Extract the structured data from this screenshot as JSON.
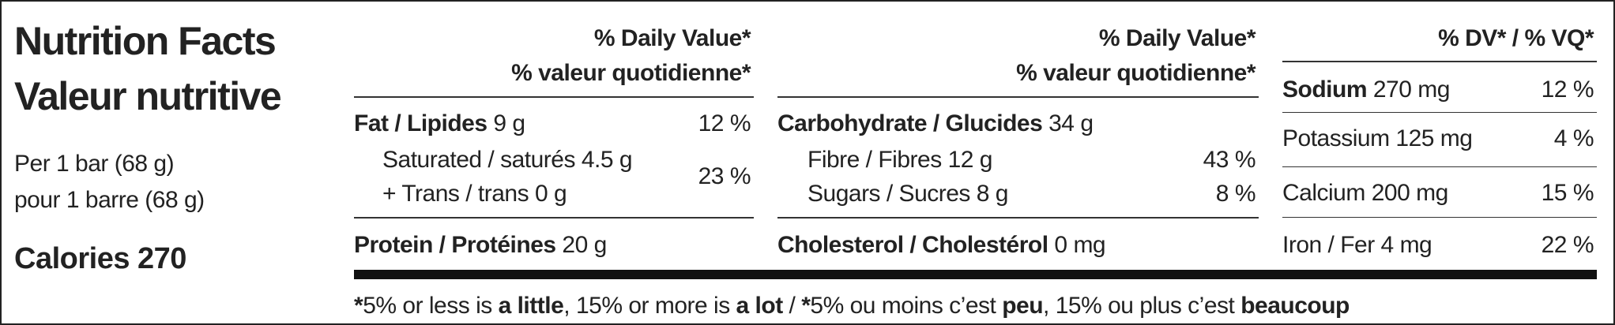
{
  "header": {
    "title": "Nutrition Facts",
    "subtitle": "Valeur nutritive",
    "serving_en": "Per 1 bar (68 g)",
    "serving_fr": "pour 1 barre (68 g)",
    "calories_label": "Calories",
    "calories": 270
  },
  "columns": [
    {
      "dv_header": [
        "% Daily Value*",
        "% valeur quotidienne*"
      ],
      "rows": [
        {
          "name": "Fat / Lipides",
          "amount": "9 g",
          "dv": "12 %"
        },
        {
          "name": "Saturated / saturés",
          "amount": "4.5 g"
        },
        {
          "name": "+ Trans / trans",
          "amount": "0 g"
        },
        {
          "name": "Protein / Protéines",
          "amount": "20 g"
        }
      ],
      "combined_dv": "23 %"
    },
    {
      "dv_header": [
        "% Daily Value*",
        "% valeur quotidienne*"
      ],
      "rows": [
        {
          "name": "Carbohydrate / Glucides",
          "amount": "34 g"
        },
        {
          "name": "Fibre / Fibres",
          "amount": "12 g",
          "dv": "43 %"
        },
        {
          "name": "Sugars / Sucres",
          "amount": "8 g",
          "dv": "8 %"
        },
        {
          "name": "Cholesterol / Cholestérol",
          "amount": "0 mg"
        }
      ]
    },
    {
      "dv_header": [
        "% DV* / % VQ*"
      ],
      "rows": [
        {
          "name": "Sodium",
          "amount": "270 mg",
          "dv": "12 %"
        },
        {
          "name": "Potassium",
          "amount": "125 mg",
          "dv": "4 %"
        },
        {
          "name": "Calcium",
          "amount": "200 mg",
          "dv": "15 %"
        },
        {
          "name": "Iron / Fer",
          "amount": "4 mg",
          "dv": "22 %"
        }
      ]
    }
  ],
  "footnote": [
    "*",
    "5% or less is ",
    "a little",
    ", 15% or more is ",
    "a lot",
    " / ",
    "*",
    "5% ou moins c’est ",
    "peu",
    ", 15% ou plus c’est ",
    "beaucoup"
  ]
}
